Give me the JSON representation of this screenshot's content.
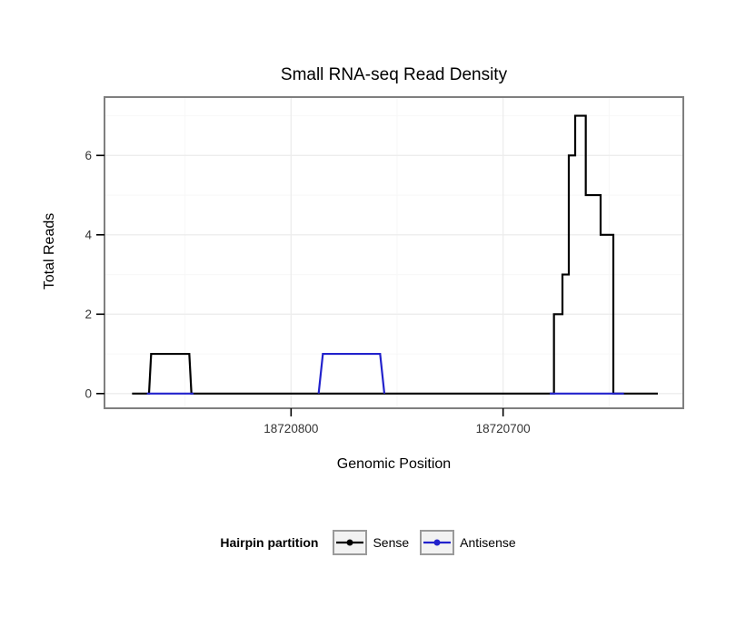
{
  "chart_data": {
    "type": "line",
    "title": "Small RNA-seq Read Density",
    "xlabel": "Genomic Position",
    "ylabel": "Total Reads",
    "x_axis": {
      "reversed": true,
      "domain": [
        18720888,
        18720615
      ],
      "ticks": [
        {
          "value": 18720800,
          "label": "18720800"
        },
        {
          "value": 18720700,
          "label": "18720700"
        }
      ],
      "minor": [
        18720850,
        18720750,
        18720650
      ]
    },
    "y_axis": {
      "domain": [
        -0.37,
        7.47
      ],
      "ticks": [
        {
          "value": 0,
          "label": "0"
        },
        {
          "value": 2,
          "label": "2"
        },
        {
          "value": 4,
          "label": "4"
        },
        {
          "value": 6,
          "label": "6"
        }
      ],
      "minor": [
        1,
        3,
        5,
        7
      ]
    },
    "grid": {
      "major_color": "#ededed",
      "minor_color": "#f7f7f7",
      "panel_border": "#7f7f7f"
    },
    "legend": {
      "title": "Hairpin partition",
      "position": "bottom",
      "entries": [
        {
          "label": "Sense",
          "color": "#000000"
        },
        {
          "label": "Antisense",
          "color": "#2222cc"
        }
      ]
    },
    "series": [
      {
        "name": "Sense",
        "color": "#000000",
        "width": 2.2,
        "paths": [
          [
            [
              18720875,
              0
            ],
            [
              18720867,
              0
            ],
            [
              18720866,
              1
            ],
            [
              18720848,
              1
            ],
            [
              18720847,
              0
            ],
            [
              18720676,
              0
            ],
            [
              18720676,
              2
            ],
            [
              18720672,
              2
            ],
            [
              18720672,
              3
            ],
            [
              18720669,
              3
            ],
            [
              18720669,
              6
            ],
            [
              18720666,
              6
            ],
            [
              18720666,
              7
            ],
            [
              18720661,
              7
            ],
            [
              18720661,
              5
            ],
            [
              18720654,
              5
            ],
            [
              18720654,
              4
            ],
            [
              18720648,
              4
            ],
            [
              18720648,
              0
            ],
            [
              18720627,
              0
            ]
          ]
        ]
      },
      {
        "name": "Antisense",
        "color": "#2222cc",
        "width": 2.2,
        "paths": [
          [
            [
              18720868,
              0
            ],
            [
              18720846,
              0
            ]
          ],
          [
            [
              18720787,
              0
            ],
            [
              18720785,
              1
            ],
            [
              18720758,
              1
            ],
            [
              18720756,
              0
            ]
          ],
          [
            [
              18720678,
              0
            ],
            [
              18720643,
              0
            ]
          ]
        ]
      }
    ]
  }
}
